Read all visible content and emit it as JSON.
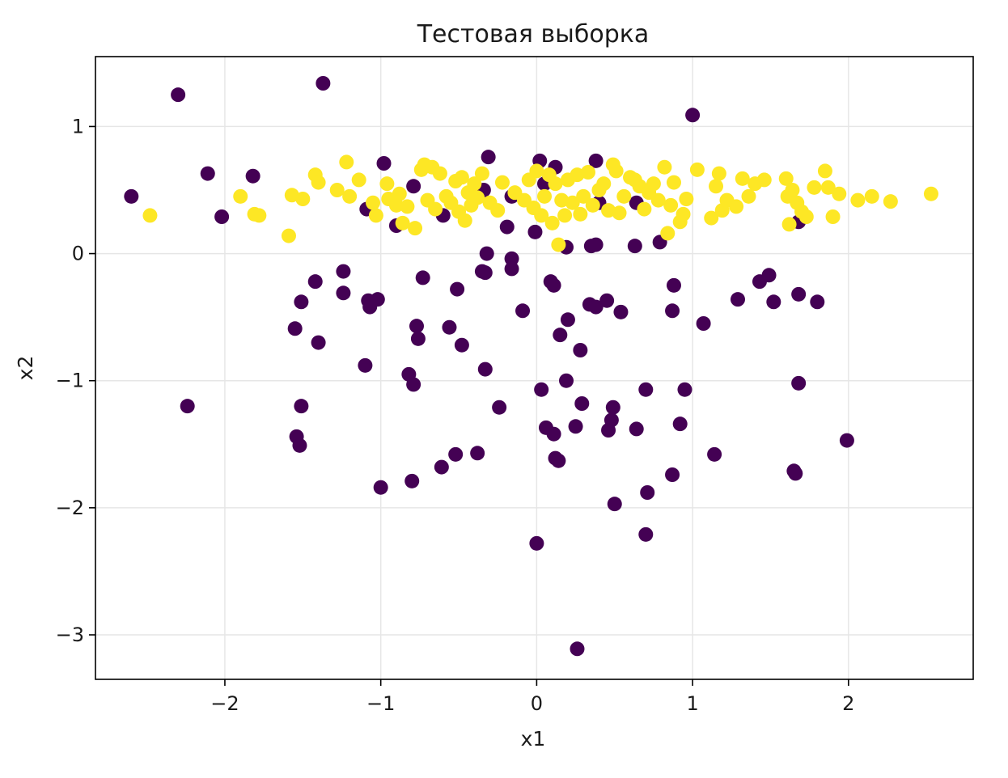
{
  "chart_data": {
    "type": "scatter",
    "title": "Тестовая выборка",
    "xlabel": "x1",
    "ylabel": "x2",
    "xlim": [
      -2.83,
      2.8
    ],
    "ylim": [
      -3.35,
      1.55
    ],
    "grid": true,
    "x_ticks": [
      -2,
      -1,
      0,
      1,
      2
    ],
    "y_ticks": [
      -3,
      -2,
      -1,
      0,
      1
    ],
    "x_tick_labels": [
      "−2",
      "−1",
      "0",
      "1",
      "2"
    ],
    "y_tick_labels": [
      "−3",
      "−2",
      "−1",
      "0",
      "1"
    ],
    "series": [
      {
        "color": "#440154",
        "points": [
          [
            -2.3,
            1.25
          ],
          [
            -1.37,
            1.34
          ],
          [
            -2.6,
            0.45
          ],
          [
            -2.11,
            0.63
          ],
          [
            -1.82,
            0.61
          ],
          [
            -2.02,
            0.29
          ],
          [
            1.0,
            1.09
          ],
          [
            -0.31,
            0.76
          ],
          [
            0.38,
            0.73
          ],
          [
            0.02,
            0.73
          ],
          [
            0.12,
            0.68
          ],
          [
            -0.98,
            0.71
          ],
          [
            -1.09,
            0.35
          ],
          [
            -0.79,
            0.53
          ],
          [
            -0.9,
            0.22
          ],
          [
            -0.6,
            0.3
          ],
          [
            -0.19,
            0.21
          ],
          [
            -0.34,
            0.5
          ],
          [
            0.05,
            0.55
          ],
          [
            0.4,
            0.4
          ],
          [
            0.64,
            0.4
          ],
          [
            -0.16,
            0.45
          ],
          [
            -0.01,
            0.17
          ],
          [
            0.19,
            0.05
          ],
          [
            0.35,
            0.06
          ],
          [
            0.38,
            0.07
          ],
          [
            0.63,
            0.06
          ],
          [
            0.79,
            0.09
          ],
          [
            1.68,
            0.25
          ],
          [
            -0.32,
            0.0
          ],
          [
            -0.16,
            -0.04
          ],
          [
            -0.16,
            -0.12
          ],
          [
            -0.35,
            -0.14
          ],
          [
            -0.33,
            -0.15
          ],
          [
            -1.24,
            -0.14
          ],
          [
            -1.42,
            -0.22
          ],
          [
            -0.73,
            -0.19
          ],
          [
            0.09,
            -0.22
          ],
          [
            0.11,
            -0.25
          ],
          [
            -0.51,
            -0.28
          ],
          [
            -1.24,
            -0.31
          ],
          [
            -1.51,
            -0.38
          ],
          [
            -1.08,
            -0.37
          ],
          [
            -1.07,
            -0.42
          ],
          [
            -1.02,
            -0.36
          ],
          [
            -0.09,
            -0.45
          ],
          [
            0.34,
            -0.4
          ],
          [
            0.38,
            -0.42
          ],
          [
            0.45,
            -0.37
          ],
          [
            0.54,
            -0.46
          ],
          [
            0.88,
            -0.25
          ],
          [
            0.87,
            -0.45
          ],
          [
            1.07,
            -0.55
          ],
          [
            1.29,
            -0.36
          ],
          [
            1.43,
            -0.22
          ],
          [
            1.49,
            -0.17
          ],
          [
            1.52,
            -0.38
          ],
          [
            1.68,
            -0.32
          ],
          [
            1.8,
            -0.38
          ],
          [
            -1.55,
            -0.59
          ],
          [
            -0.56,
            -0.58
          ],
          [
            -0.77,
            -0.57
          ],
          [
            -0.76,
            -0.67
          ],
          [
            -0.48,
            -0.72
          ],
          [
            0.15,
            -0.64
          ],
          [
            0.2,
            -0.52
          ],
          [
            0.28,
            -0.76
          ],
          [
            -1.4,
            -0.7
          ],
          [
            -1.1,
            -0.88
          ],
          [
            -0.82,
            -0.95
          ],
          [
            -0.79,
            -1.03
          ],
          [
            -0.33,
            -0.91
          ],
          [
            0.03,
            -1.07
          ],
          [
            0.19,
            -1.0
          ],
          [
            0.7,
            -1.07
          ],
          [
            0.95,
            -1.07
          ],
          [
            1.68,
            -1.02
          ],
          [
            -2.24,
            -1.2
          ],
          [
            -1.51,
            -1.2
          ],
          [
            -0.24,
            -1.21
          ],
          [
            0.06,
            -1.37
          ],
          [
            0.11,
            -1.42
          ],
          [
            0.25,
            -1.36
          ],
          [
            0.29,
            -1.18
          ],
          [
            0.46,
            -1.39
          ],
          [
            0.48,
            -1.31
          ],
          [
            0.49,
            -1.21
          ],
          [
            0.64,
            -1.38
          ],
          [
            0.92,
            -1.34
          ],
          [
            -1.54,
            -1.44
          ],
          [
            -1.52,
            -1.51
          ],
          [
            -0.52,
            -1.58
          ],
          [
            -0.38,
            -1.57
          ],
          [
            -0.61,
            -1.68
          ],
          [
            -0.8,
            -1.79
          ],
          [
            -1.0,
            -1.84
          ],
          [
            0.12,
            -1.61
          ],
          [
            0.14,
            -1.63
          ],
          [
            0.5,
            -1.97
          ],
          [
            0.71,
            -1.88
          ],
          [
            0.87,
            -1.74
          ],
          [
            1.14,
            -1.58
          ],
          [
            1.65,
            -1.71
          ],
          [
            1.66,
            -1.73
          ],
          [
            1.99,
            -1.47
          ],
          [
            0.7,
            -2.21
          ],
          [
            0.0,
            -2.28
          ],
          [
            0.26,
            -3.11
          ]
        ]
      },
      {
        "color": "#fde725",
        "points": [
          [
            -2.48,
            0.3
          ],
          [
            -1.9,
            0.45
          ],
          [
            -1.81,
            0.31
          ],
          [
            -1.78,
            0.3
          ],
          [
            -1.57,
            0.46
          ],
          [
            -1.59,
            0.14
          ],
          [
            -1.5,
            0.43
          ],
          [
            -1.42,
            0.62
          ],
          [
            -1.4,
            0.56
          ],
          [
            -1.28,
            0.5
          ],
          [
            -1.22,
            0.72
          ],
          [
            -1.2,
            0.45
          ],
          [
            -1.14,
            0.58
          ],
          [
            -1.05,
            0.4
          ],
          [
            -1.03,
            0.3
          ],
          [
            -0.96,
            0.55
          ],
          [
            -0.95,
            0.43
          ],
          [
            -0.9,
            0.38
          ],
          [
            -0.88,
            0.47
          ],
          [
            -0.86,
            0.24
          ],
          [
            -0.83,
            0.37
          ],
          [
            -0.78,
            0.2
          ],
          [
            -0.74,
            0.66
          ],
          [
            -0.72,
            0.7
          ],
          [
            -0.7,
            0.42
          ],
          [
            -0.67,
            0.68
          ],
          [
            -0.65,
            0.35
          ],
          [
            -0.62,
            0.63
          ],
          [
            -0.58,
            0.45
          ],
          [
            -0.55,
            0.4
          ],
          [
            -0.52,
            0.57
          ],
          [
            -0.5,
            0.33
          ],
          [
            -0.48,
            0.6
          ],
          [
            -0.46,
            0.26
          ],
          [
            -0.44,
            0.48
          ],
          [
            -0.42,
            0.38
          ],
          [
            -0.4,
            0.55
          ],
          [
            -0.38,
            0.44
          ],
          [
            -0.35,
            0.63
          ],
          [
            -0.3,
            0.4
          ],
          [
            -0.25,
            0.34
          ],
          [
            -0.22,
            0.56
          ],
          [
            -0.14,
            0.48
          ],
          [
            -0.08,
            0.42
          ],
          [
            -0.05,
            0.58
          ],
          [
            -0.02,
            0.36
          ],
          [
            0.0,
            0.65
          ],
          [
            0.03,
            0.3
          ],
          [
            0.05,
            0.45
          ],
          [
            0.08,
            0.62
          ],
          [
            0.1,
            0.24
          ],
          [
            0.12,
            0.55
          ],
          [
            0.14,
            0.07
          ],
          [
            0.16,
            0.42
          ],
          [
            0.18,
            0.3
          ],
          [
            0.2,
            0.58
          ],
          [
            0.23,
            0.4
          ],
          [
            0.26,
            0.62
          ],
          [
            0.28,
            0.31
          ],
          [
            0.3,
            0.45
          ],
          [
            0.33,
            0.64
          ],
          [
            0.36,
            0.38
          ],
          [
            0.4,
            0.5
          ],
          [
            0.43,
            0.55
          ],
          [
            0.46,
            0.34
          ],
          [
            0.49,
            0.7
          ],
          [
            0.51,
            0.65
          ],
          [
            0.53,
            0.32
          ],
          [
            0.56,
            0.45
          ],
          [
            0.6,
            0.6
          ],
          [
            0.63,
            0.58
          ],
          [
            0.66,
            0.53
          ],
          [
            0.69,
            0.35
          ],
          [
            0.72,
            0.48
          ],
          [
            0.75,
            0.55
          ],
          [
            0.78,
            0.42
          ],
          [
            0.82,
            0.68
          ],
          [
            0.84,
            0.16
          ],
          [
            0.86,
            0.38
          ],
          [
            0.88,
            0.56
          ],
          [
            0.92,
            0.25
          ],
          [
            0.94,
            0.31
          ],
          [
            0.96,
            0.43
          ],
          [
            1.03,
            0.66
          ],
          [
            1.12,
            0.28
          ],
          [
            1.15,
            0.53
          ],
          [
            1.17,
            0.63
          ],
          [
            1.19,
            0.34
          ],
          [
            1.22,
            0.42
          ],
          [
            1.28,
            0.37
          ],
          [
            1.32,
            0.59
          ],
          [
            1.36,
            0.45
          ],
          [
            1.4,
            0.55
          ],
          [
            1.46,
            0.58
          ],
          [
            1.6,
            0.59
          ],
          [
            1.61,
            0.45
          ],
          [
            1.62,
            0.23
          ],
          [
            1.64,
            0.5
          ],
          [
            1.67,
            0.4
          ],
          [
            1.7,
            0.33
          ],
          [
            1.73,
            0.29
          ],
          [
            1.78,
            0.52
          ],
          [
            1.85,
            0.65
          ],
          [
            1.87,
            0.52
          ],
          [
            1.9,
            0.29
          ],
          [
            1.94,
            0.47
          ],
          [
            2.06,
            0.42
          ],
          [
            2.15,
            0.45
          ],
          [
            2.27,
            0.41
          ],
          [
            2.53,
            0.47
          ]
        ]
      }
    ]
  }
}
